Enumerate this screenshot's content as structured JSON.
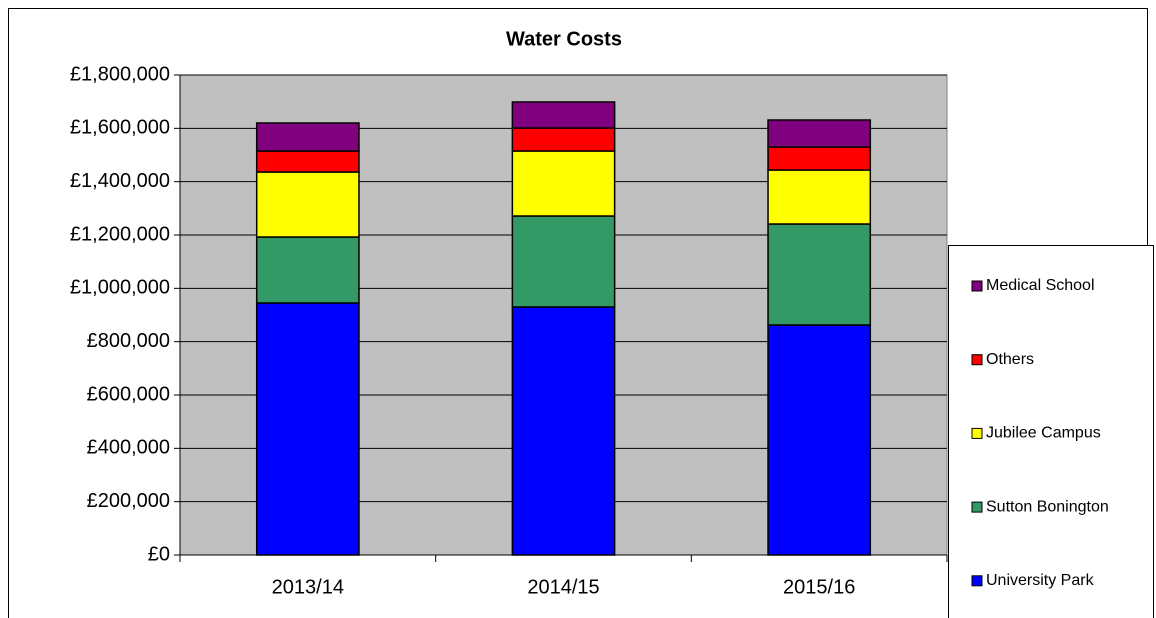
{
  "chart_data": {
    "type": "stacked_bar",
    "title": "Water Costs",
    "categories": [
      "2013/14",
      "2014/15",
      "2015/16"
    ],
    "series": [
      {
        "name": "University Park",
        "color": "#0000ff",
        "values": [
          945000,
          930000,
          862500
        ]
      },
      {
        "name": "Sutton Bonington",
        "color": "#339966",
        "values": [
          247500,
          341250,
          378750
        ]
      },
      {
        "name": "Jubilee Campus",
        "color": "#ffff00",
        "values": [
          243750,
          243750,
          202500
        ]
      },
      {
        "name": "Others",
        "color": "#ff0000",
        "values": [
          78750,
          86250,
          86250
        ]
      },
      {
        "name": "Medical School",
        "color": "#800080",
        "values": [
          105000,
          97500,
          101250
        ]
      }
    ],
    "ylim": [
      0,
      1800000
    ],
    "yticks": [
      {
        "value": 0,
        "label": "£0"
      },
      {
        "value": 200000,
        "label": "£200,000"
      },
      {
        "value": 400000,
        "label": "£400,000"
      },
      {
        "value": 600000,
        "label": "£600,000"
      },
      {
        "value": 800000,
        "label": "£800,000"
      },
      {
        "value": 1000000,
        "label": "£1,000,000"
      },
      {
        "value": 1200000,
        "label": "£1,200,000"
      },
      {
        "value": 1400000,
        "label": "£1,400,000"
      },
      {
        "value": 1600000,
        "label": "£1,600,000"
      },
      {
        "value": 1800000,
        "label": "£1,800,000"
      }
    ],
    "grid": true,
    "legend": "right"
  }
}
